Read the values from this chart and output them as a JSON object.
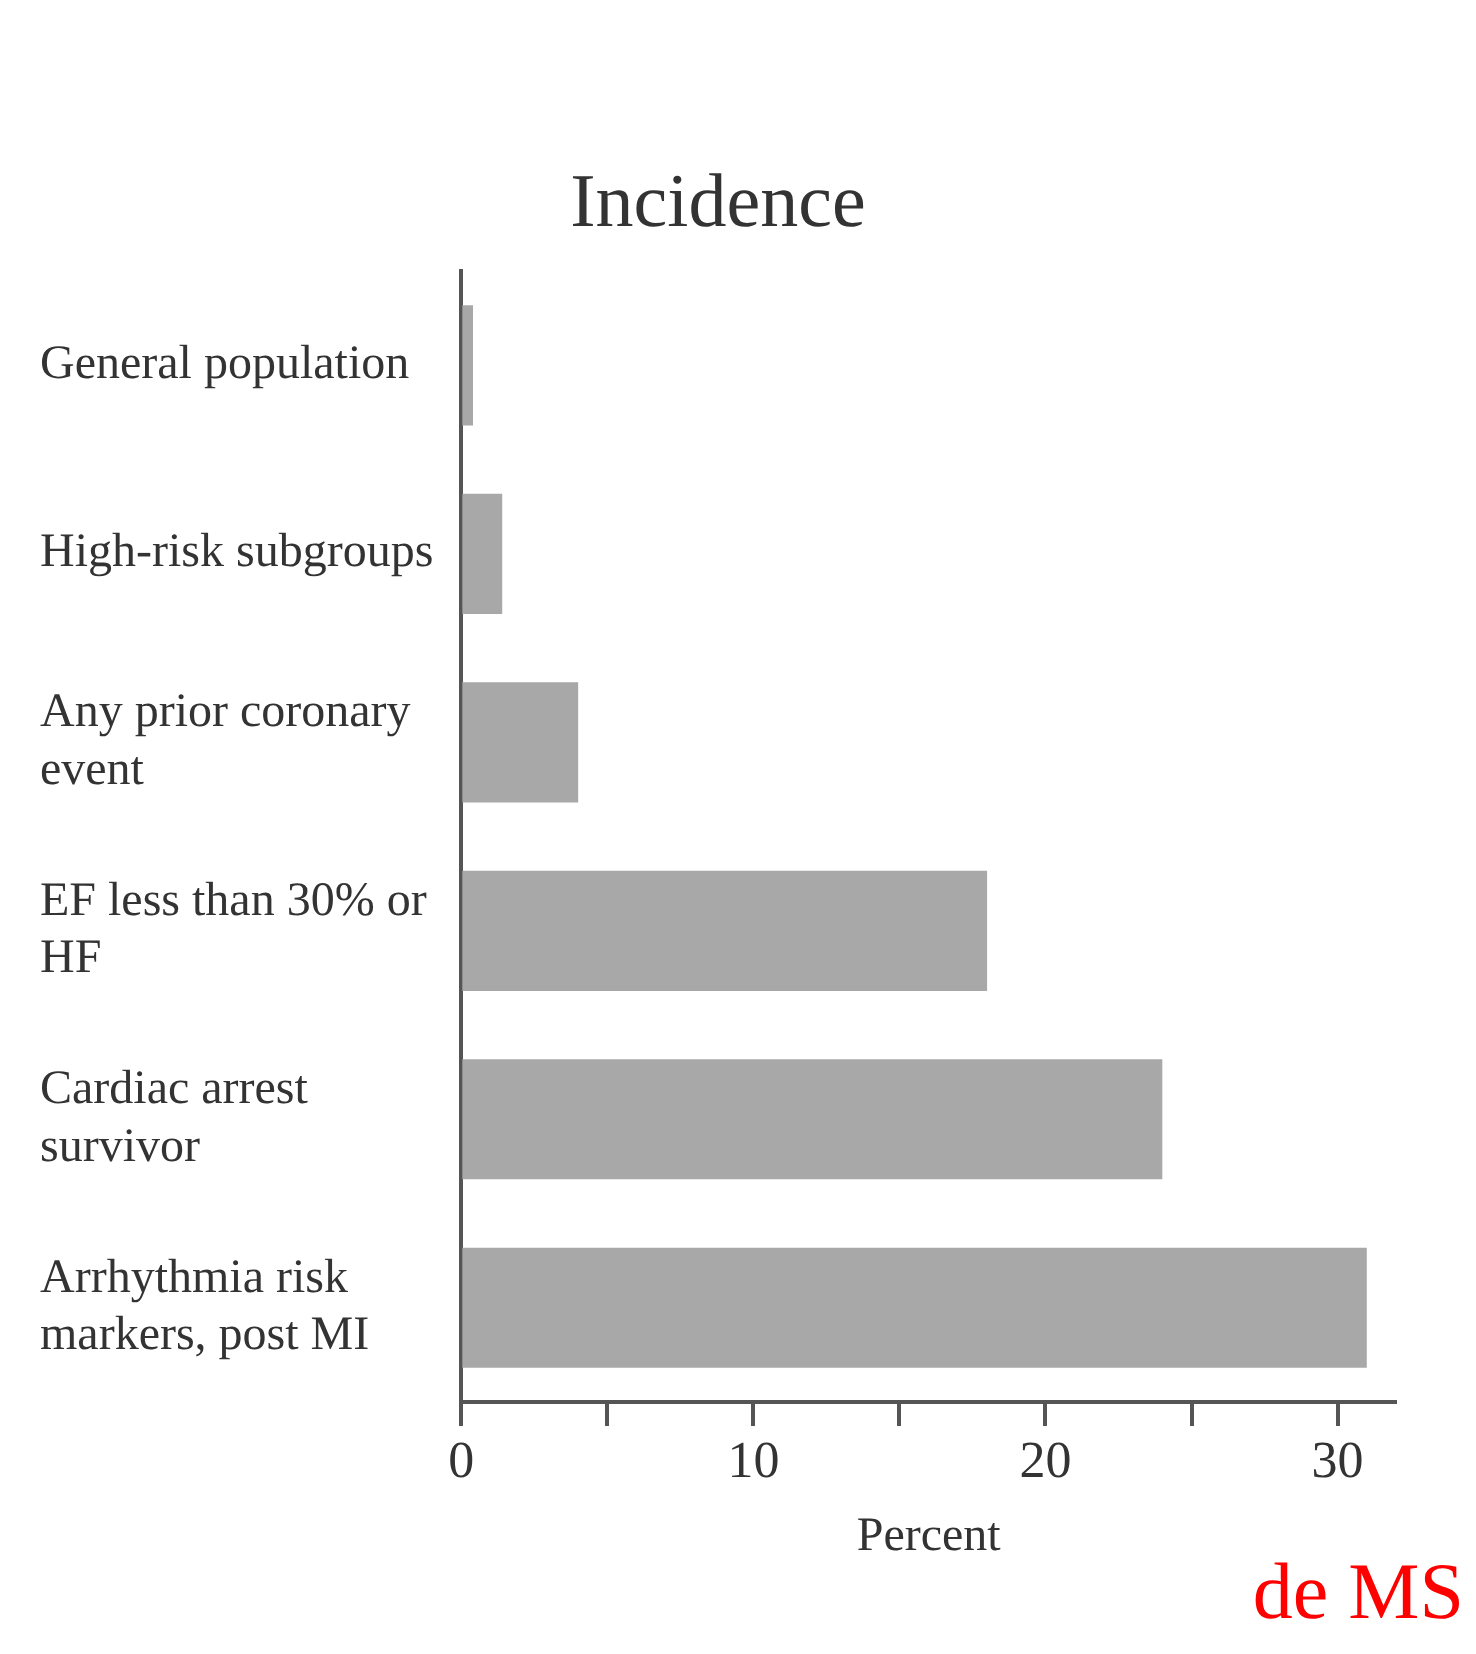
{
  "chart_data": {
    "type": "bar",
    "orientation": "horizontal",
    "title": "Incidence",
    "xlabel": "Percent",
    "categories": [
      "General population",
      "High-risk subgroups",
      "Any prior coronary event",
      "EF less than 30% or HF",
      "Cardiac arrest survivor",
      "Arrhythmia risk markers, post MI"
    ],
    "values": [
      0.4,
      1.4,
      4,
      18,
      24,
      31
    ],
    "color": "#a8a8a8",
    "xlim": [
      0,
      32
    ],
    "xticks": [
      0,
      {
        "value": 5,
        "label": null
      },
      10,
      {
        "value": 15,
        "label": null
      },
      20,
      {
        "value": 25,
        "label": null
      },
      30
    ],
    "grid": false,
    "annotations": [
      "de MS"
    ]
  }
}
